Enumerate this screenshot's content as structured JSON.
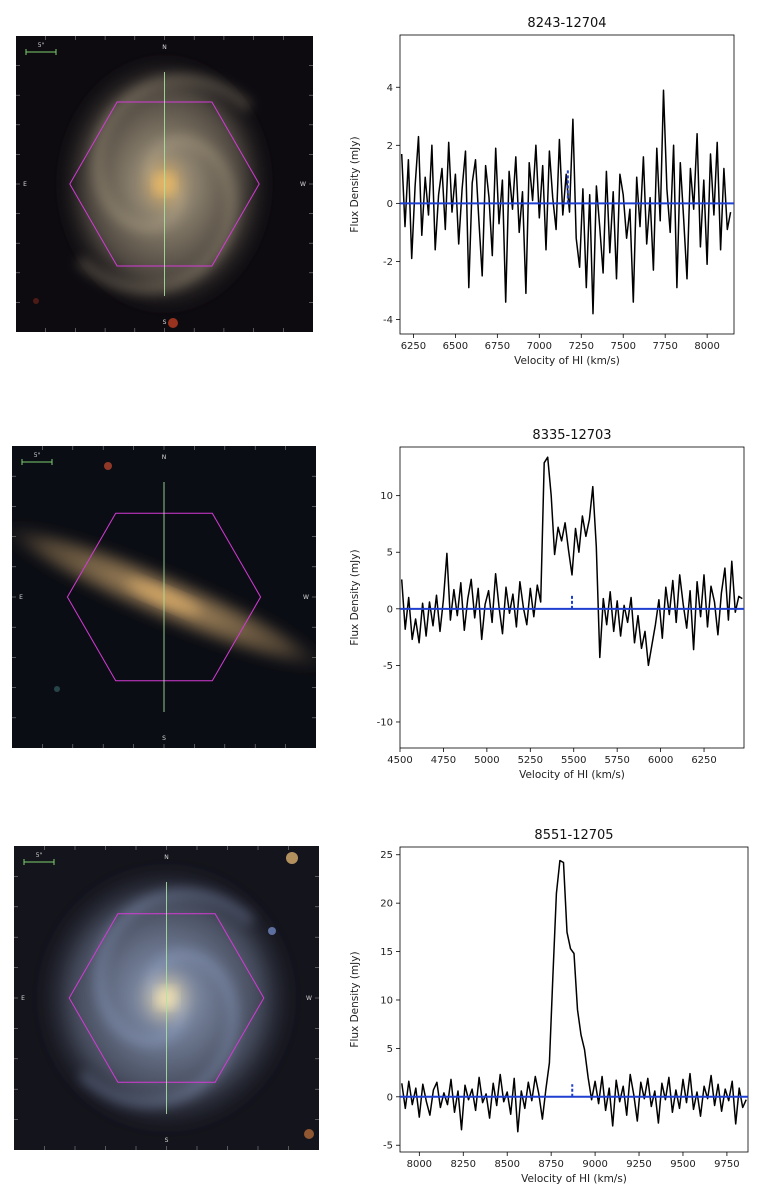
{
  "galaxy_images": [
    {
      "id_label": "8243-12704",
      "compass": {
        "north": "N",
        "south": "S",
        "east": "E",
        "west": "W"
      },
      "scalebar_label": "5\"",
      "colors": {
        "bg": "#0d0b10",
        "core": "#e8b865",
        "halo": "#9a8e78",
        "hexagon": "#d53ad6",
        "crosshair": "#a8e8a0"
      },
      "shape": "face-on-spiral"
    },
    {
      "id_label": "8335-12703",
      "compass": {
        "north": "N",
        "south": "S",
        "east": "E",
        "west": "W"
      },
      "scalebar_label": "5\"",
      "colors": {
        "bg": "#0b0d14",
        "core": "#e0b06a",
        "halo": "#a2845a",
        "hexagon": "#d53ad6",
        "crosshair": "#a8e8a0"
      },
      "shape": "edge-on"
    },
    {
      "id_label": "8551-12705",
      "compass": {
        "north": "N",
        "south": "S",
        "east": "E",
        "west": "W"
      },
      "scalebar_label": "5\"",
      "colors": {
        "bg": "#14141c",
        "core": "#f0e0b0",
        "halo": "#7d8aa5",
        "hexagon": "#d53ad6",
        "crosshair": "#a8e8a0"
      },
      "shape": "face-on-spiral-blue"
    }
  ],
  "chart_data": [
    {
      "type": "line",
      "title": "8243-12704",
      "xlabel": "Velocity of HI (km/s)",
      "ylabel": "Flux Density (mJy)",
      "xlim": [
        6170,
        8160
      ],
      "ylim": [
        -4.5,
        5.8
      ],
      "xticks": [
        6250,
        6500,
        6750,
        7000,
        7250,
        7500,
        7750,
        8000
      ],
      "yticks": [
        -4,
        -2,
        0,
        2,
        4
      ],
      "baseline": 0,
      "marker_velocity": 7170,
      "marker_height": 1.2,
      "series_color": "#000000",
      "baseline_color": "#1f3fd1",
      "spectrum": {
        "x": [
          6180,
          6200,
          6220,
          6240,
          6260,
          6280,
          6300,
          6320,
          6340,
          6360,
          6380,
          6400,
          6420,
          6440,
          6460,
          6480,
          6500,
          6520,
          6540,
          6560,
          6580,
          6600,
          6620,
          6640,
          6660,
          6680,
          6700,
          6720,
          6740,
          6760,
          6780,
          6800,
          6820,
          6840,
          6860,
          6880,
          6900,
          6920,
          6940,
          6960,
          6980,
          7000,
          7020,
          7040,
          7060,
          7080,
          7100,
          7120,
          7140,
          7160,
          7180,
          7200,
          7220,
          7240,
          7260,
          7280,
          7300,
          7320,
          7340,
          7360,
          7380,
          7400,
          7420,
          7440,
          7460,
          7480,
          7500,
          7520,
          7540,
          7560,
          7580,
          7600,
          7620,
          7640,
          7660,
          7680,
          7700,
          7720,
          7740,
          7760,
          7780,
          7800,
          7820,
          7840,
          7860,
          7880,
          7900,
          7920,
          7940,
          7960,
          7980,
          8000,
          8020,
          8040,
          8060,
          8080,
          8100,
          8120,
          8140
        ],
        "y": [
          1.7,
          -0.8,
          1.5,
          -1.9,
          0.6,
          2.3,
          -1.1,
          0.9,
          -0.4,
          2.0,
          -1.6,
          0.3,
          1.2,
          -0.9,
          2.1,
          -0.3,
          1.0,
          -1.4,
          0.5,
          1.8,
          -2.9,
          0.7,
          1.5,
          -0.6,
          -2.5,
          1.3,
          0.2,
          -1.8,
          1.9,
          -0.7,
          0.8,
          -3.4,
          1.1,
          -0.2,
          1.6,
          -1.0,
          0.4,
          -3.1,
          1.4,
          0.1,
          2.0,
          -0.5,
          1.3,
          -1.6,
          1.8,
          0.2,
          -0.9,
          2.2,
          -0.4,
          1.0,
          -0.3,
          2.9,
          -1.2,
          -2.2,
          0.5,
          -2.9,
          0.3,
          -3.8,
          0.6,
          -0.8,
          -2.4,
          1.1,
          -1.7,
          0.4,
          -2.6,
          1.0,
          0.3,
          -1.2,
          -0.2,
          -3.4,
          0.9,
          -0.8,
          1.6,
          -1.4,
          0.2,
          -2.3,
          1.9,
          -0.6,
          3.9,
          0.5,
          -1.0,
          2.0,
          -2.9,
          1.4,
          -0.5,
          -2.6,
          1.2,
          -0.2,
          2.4,
          -1.5,
          0.8,
          -2.1,
          1.7,
          -0.4,
          2.1,
          -1.6,
          1.2,
          -0.9,
          -0.3
        ]
      }
    },
    {
      "type": "line",
      "title": "8335-12703",
      "xlabel": "Velocity of HI (km/s)",
      "ylabel": "Flux Density (mJy)",
      "xlim": [
        4500,
        6480
      ],
      "ylim": [
        -12.3,
        14.3
      ],
      "xticks": [
        4500,
        4750,
        5000,
        5250,
        5500,
        5750,
        6000,
        6250
      ],
      "yticks": [
        -10,
        -5,
        0,
        5,
        10
      ],
      "baseline": 0,
      "marker_velocity": 5490,
      "marker_height": 1.3,
      "series_color": "#000000",
      "baseline_color": "#1f3fd1",
      "spectrum": {
        "x": [
          4510,
          4530,
          4550,
          4570,
          4590,
          4610,
          4630,
          4650,
          4670,
          4690,
          4710,
          4730,
          4750,
          4770,
          4790,
          4810,
          4830,
          4850,
          4870,
          4890,
          4910,
          4930,
          4950,
          4970,
          4990,
          5010,
          5030,
          5050,
          5070,
          5090,
          5110,
          5130,
          5150,
          5170,
          5190,
          5210,
          5230,
          5250,
          5270,
          5290,
          5310,
          5330,
          5350,
          5370,
          5390,
          5410,
          5430,
          5450,
          5470,
          5490,
          5510,
          5530,
          5550,
          5570,
          5590,
          5610,
          5630,
          5650,
          5670,
          5690,
          5710,
          5730,
          5750,
          5770,
          5790,
          5810,
          5830,
          5850,
          5870,
          5890,
          5910,
          5930,
          5950,
          5970,
          5990,
          6010,
          6030,
          6050,
          6070,
          6090,
          6110,
          6130,
          6150,
          6170,
          6190,
          6210,
          6230,
          6250,
          6270,
          6290,
          6310,
          6330,
          6350,
          6370,
          6390,
          6410,
          6430,
          6450,
          6470
        ],
        "y": [
          2.6,
          -1.8,
          1.0,
          -2.7,
          -0.9,
          -3.0,
          0.5,
          -2.4,
          0.6,
          -1.5,
          1.2,
          -2.0,
          0.8,
          4.9,
          -1.0,
          1.7,
          -0.6,
          2.3,
          -1.9,
          0.9,
          2.6,
          -0.8,
          1.8,
          -2.7,
          0.4,
          1.6,
          -1.2,
          3.1,
          0.2,
          -2.2,
          1.9,
          -0.4,
          1.3,
          -1.6,
          2.4,
          0.1,
          -1.4,
          1.8,
          -0.7,
          2.1,
          0.6,
          12.9,
          13.4,
          10.0,
          4.8,
          7.2,
          6.0,
          7.6,
          5.2,
          3.0,
          7.1,
          5.0,
          8.2,
          6.4,
          7.9,
          10.8,
          5.5,
          -4.3,
          0.9,
          -1.4,
          1.5,
          -2.0,
          0.7,
          -2.4,
          0.3,
          -1.2,
          1.0,
          -3.0,
          -0.6,
          -3.5,
          -2.0,
          -5.0,
          -3.2,
          -1.4,
          0.8,
          -2.6,
          1.9,
          -0.5,
          2.5,
          -1.2,
          3.0,
          0.4,
          -1.7,
          1.6,
          -3.6,
          2.4,
          -0.7,
          3.0,
          -1.6,
          2.0,
          0.6,
          -2.3,
          1.4,
          3.6,
          -1.0,
          4.2,
          -0.3,
          1.1,
          0.9
        ]
      }
    },
    {
      "type": "line",
      "title": "8551-12705",
      "xlabel": "Velocity of HI (km/s)",
      "ylabel": "Flux Density (mJy)",
      "xlim": [
        7890,
        9870
      ],
      "ylim": [
        -5.7,
        25.8
      ],
      "xticks": [
        8000,
        8250,
        8500,
        8750,
        9000,
        9250,
        9500,
        9750
      ],
      "yticks": [
        -5,
        0,
        5,
        10,
        15,
        20,
        25
      ],
      "baseline": 0,
      "marker_velocity": 8870,
      "marker_height": 1.3,
      "series_color": "#000000",
      "baseline_color": "#1f3fd1",
      "spectrum": {
        "x": [
          7900,
          7920,
          7940,
          7960,
          7980,
          8000,
          8020,
          8040,
          8060,
          8080,
          8100,
          8120,
          8140,
          8160,
          8180,
          8200,
          8220,
          8240,
          8260,
          8280,
          8300,
          8320,
          8340,
          8360,
          8380,
          8400,
          8420,
          8440,
          8460,
          8480,
          8500,
          8520,
          8540,
          8560,
          8580,
          8600,
          8620,
          8640,
          8660,
          8680,
          8700,
          8720,
          8740,
          8760,
          8780,
          8800,
          8820,
          8840,
          8860,
          8880,
          8900,
          8920,
          8940,
          8960,
          8980,
          9000,
          9020,
          9040,
          9060,
          9080,
          9100,
          9120,
          9140,
          9160,
          9180,
          9200,
          9220,
          9240,
          9260,
          9280,
          9300,
          9320,
          9340,
          9360,
          9380,
          9400,
          9420,
          9440,
          9460,
          9480,
          9500,
          9520,
          9540,
          9560,
          9580,
          9600,
          9620,
          9640,
          9660,
          9680,
          9700,
          9720,
          9740,
          9760,
          9780,
          9800,
          9820,
          9840,
          9860
        ],
        "y": [
          1.4,
          -1.2,
          1.6,
          -0.8,
          0.9,
          -2.1,
          1.3,
          -0.5,
          -1.9,
          0.7,
          1.5,
          -1.1,
          0.4,
          -0.8,
          1.8,
          -1.6,
          0.6,
          -3.4,
          1.2,
          -0.3,
          0.8,
          -1.4,
          2.0,
          -0.6,
          0.3,
          -2.2,
          1.4,
          -0.9,
          2.3,
          -0.5,
          0.5,
          -1.8,
          1.9,
          -3.6,
          0.6,
          -1.2,
          1.5,
          -0.4,
          2.1,
          0.3,
          -2.3,
          0.8,
          3.5,
          12.5,
          21.0,
          24.4,
          24.2,
          17.0,
          15.3,
          14.8,
          9.0,
          6.4,
          4.9,
          2.0,
          -0.3,
          1.6,
          -0.7,
          2.1,
          -1.4,
          0.9,
          -3.0,
          1.7,
          -0.5,
          1.1,
          -1.9,
          2.3,
          0.2,
          -2.5,
          1.5,
          -0.2,
          1.9,
          -1.0,
          0.6,
          -2.7,
          1.4,
          -0.3,
          2.0,
          -1.6,
          0.7,
          -1.2,
          1.8,
          -0.6,
          2.4,
          -1.3,
          0.5,
          -2.0,
          1.1,
          -0.2,
          2.2,
          -0.9,
          1.3,
          -1.5,
          0.8,
          -0.4,
          1.6,
          -2.8,
          0.9,
          -1.1,
          -0.3
        ]
      }
    }
  ]
}
